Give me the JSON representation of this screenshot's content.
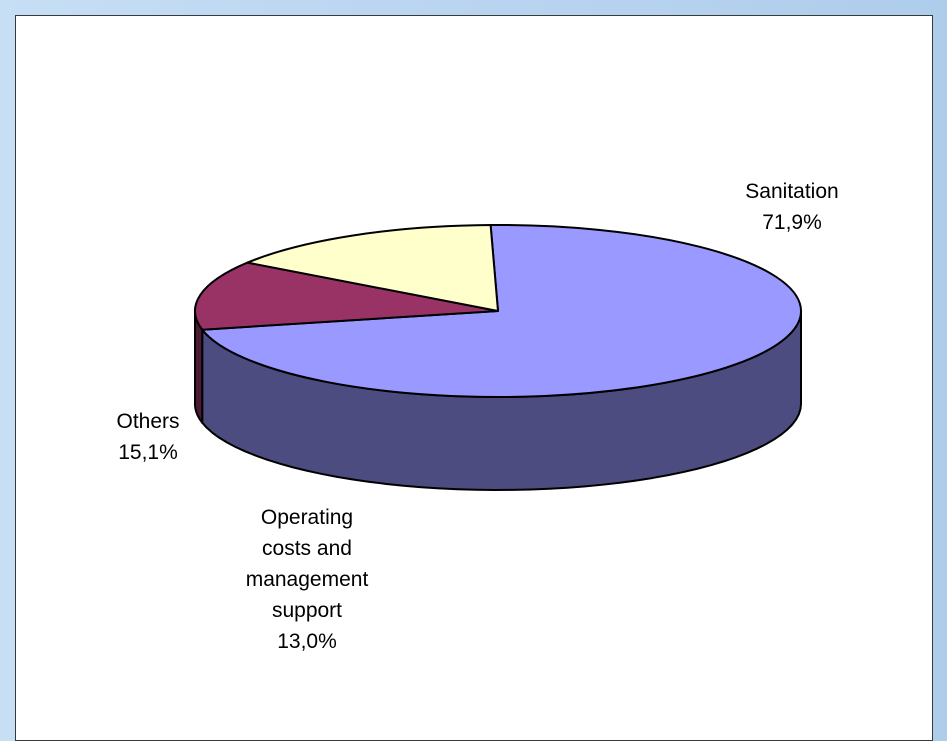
{
  "chart_data": {
    "type": "pie",
    "title": "",
    "style": "3d",
    "slices": [
      {
        "label_lines": [
          "Sanitation"
        ],
        "value_label": "71,9%",
        "value": 71.9,
        "top_color": "#9999ff",
        "side_color": "#4c4c80"
      },
      {
        "label_lines": [
          "Operating",
          "costs and",
          "management",
          "support"
        ],
        "value_label": "13,0%",
        "value": 13.0,
        "top_color": "#993366",
        "side_color": "#4d1a33"
      },
      {
        "label_lines": [
          "Others"
        ],
        "value_label": "15,1%",
        "value": 15.1,
        "top_color": "#ffffcc",
        "side_color": "#808066"
      }
    ]
  }
}
